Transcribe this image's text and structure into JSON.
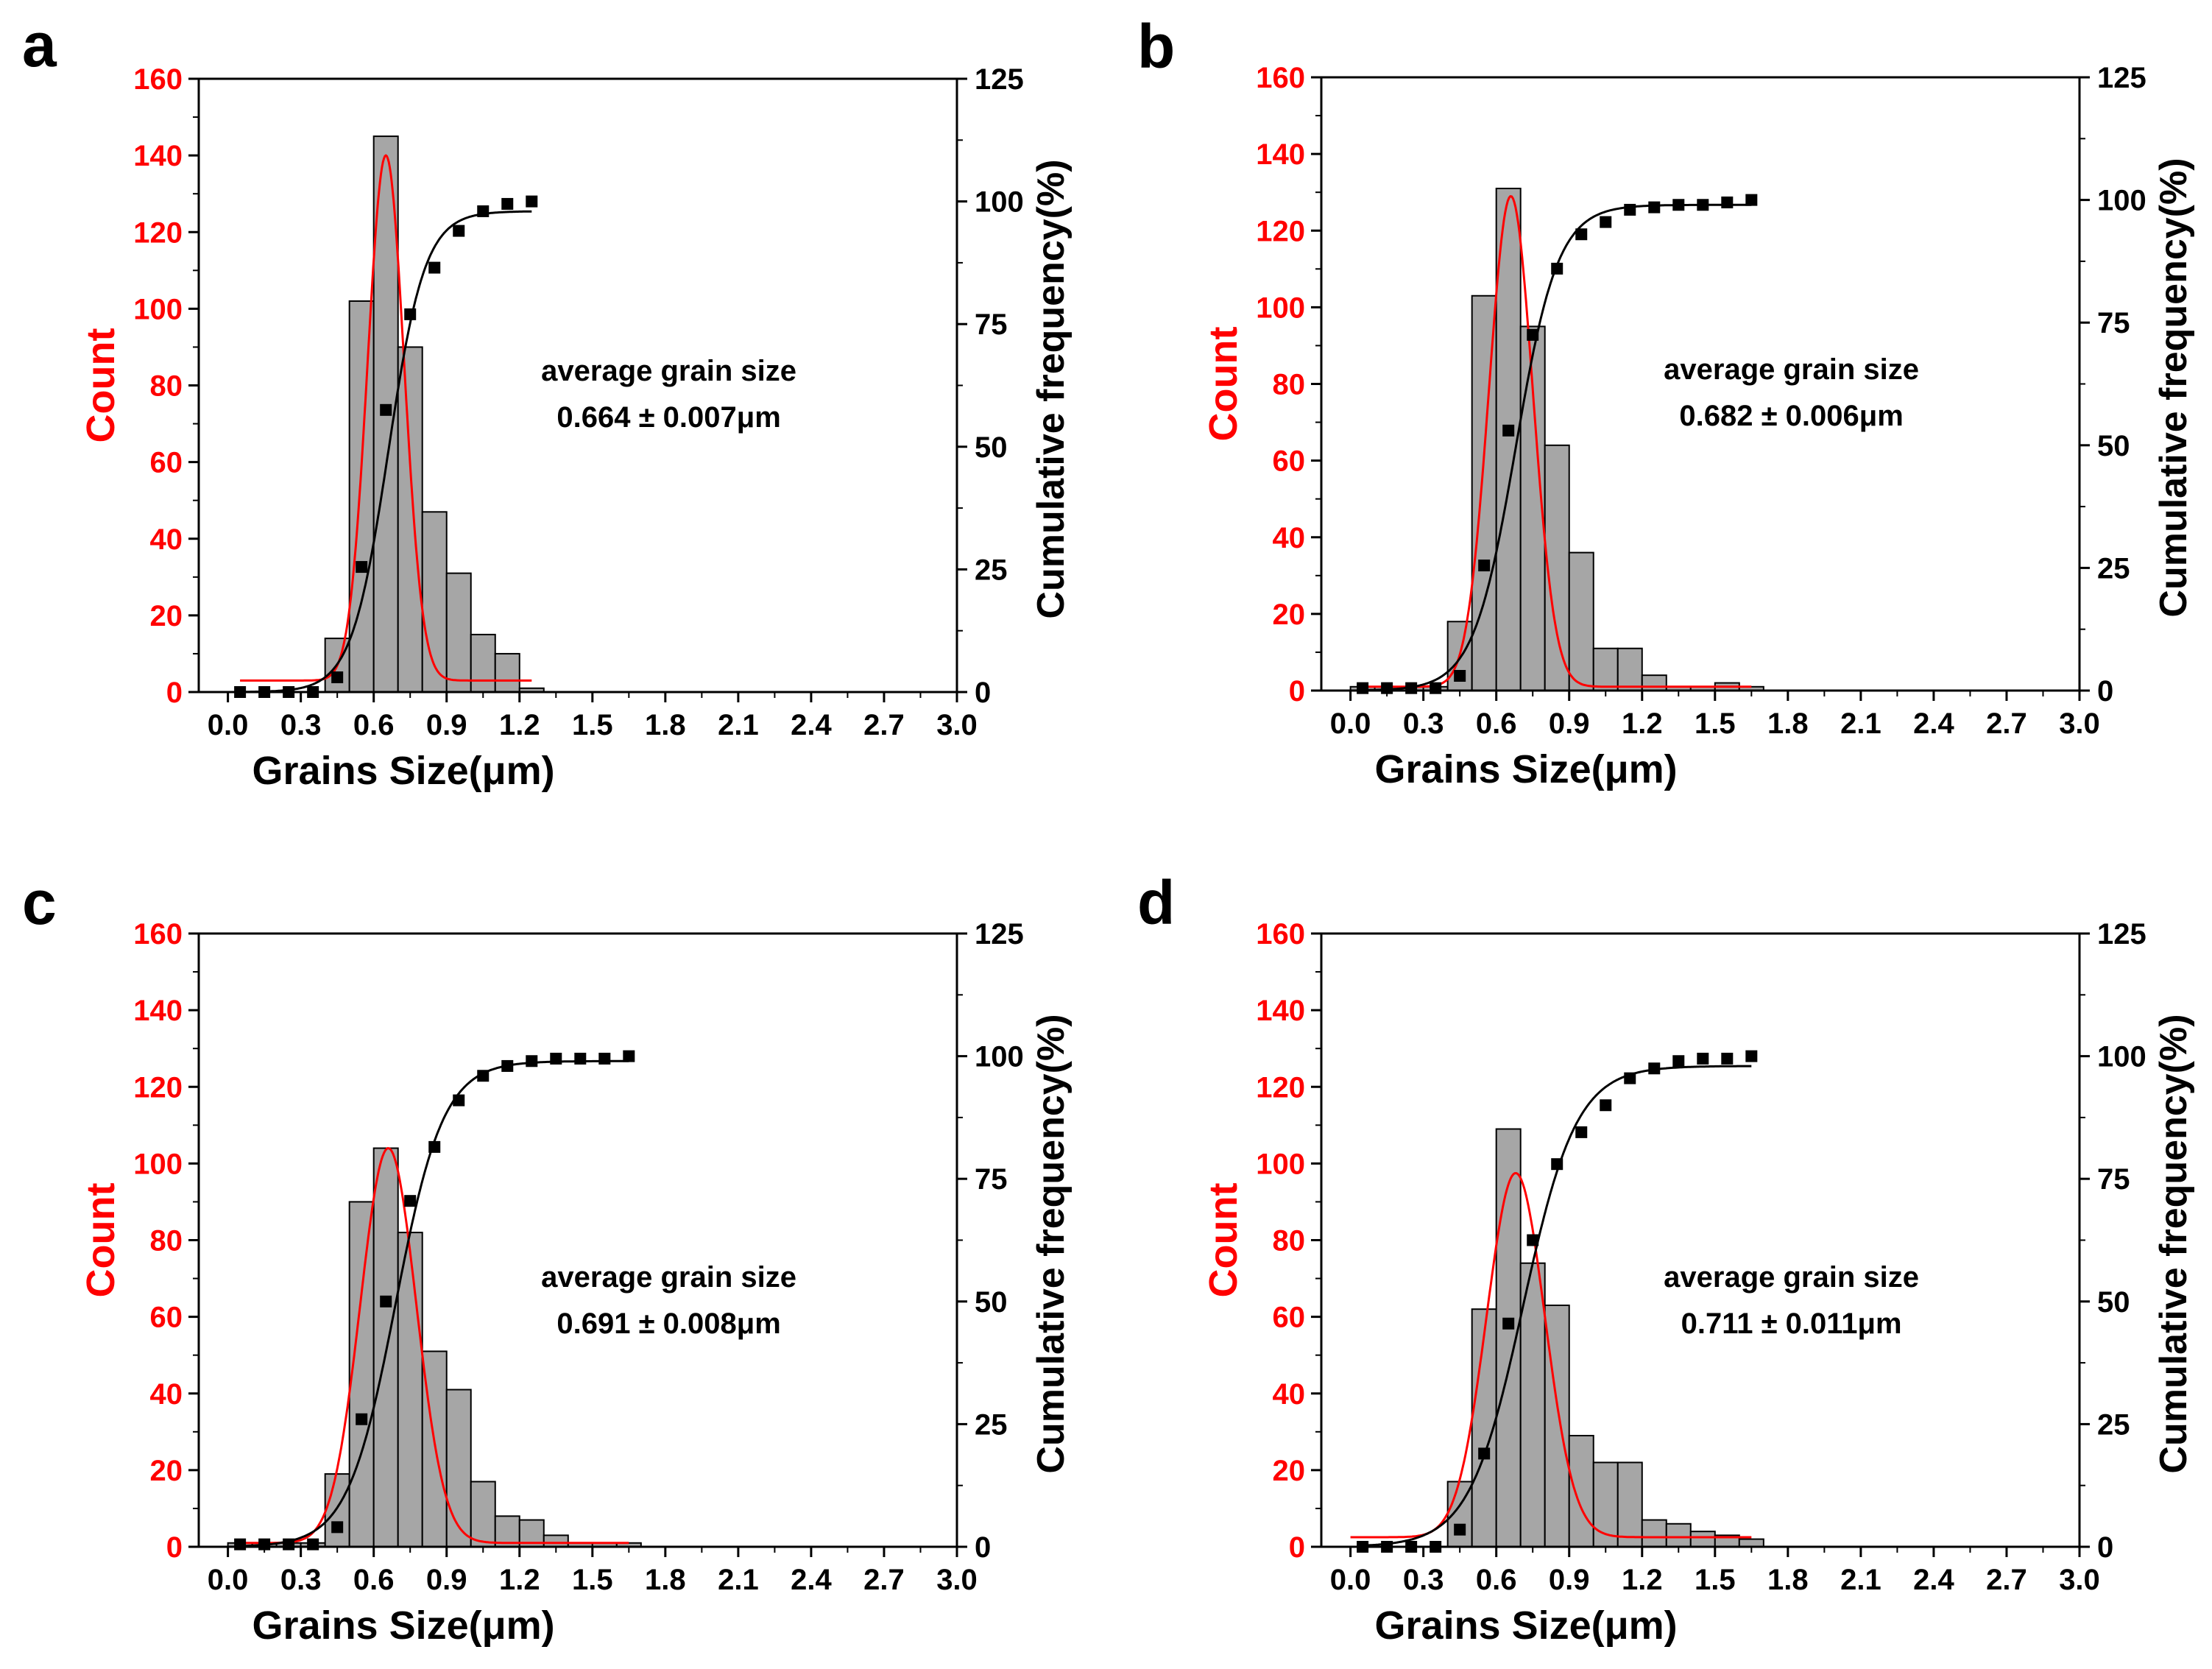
{
  "chart_data": [
    {
      "panel": "a",
      "type": "bar",
      "xlabel": "Grains Size(μm)",
      "ylabel": "Count",
      "ylabel_right": "Cumulative frequency(%)",
      "xlim": [
        -0.12,
        3.0
      ],
      "ylim": [
        0,
        160
      ],
      "ylim_right": [
        0,
        125
      ],
      "xticks": [
        "0.0",
        "0.3",
        "0.6",
        "0.9",
        "1.2",
        "1.5",
        "1.8",
        "2.1",
        "2.4",
        "2.7",
        "3.0"
      ],
      "yticks": [
        "0",
        "20",
        "40",
        "60",
        "80",
        "100",
        "120",
        "140",
        "160"
      ],
      "yticks_right": [
        "0",
        "25",
        "50",
        "75",
        "100",
        "125"
      ],
      "annotation_line1": "average grain size",
      "annotation_line2": "0.664 ± 0.007μm",
      "bar_width": 0.1,
      "bars": {
        "x": [
          0.05,
          0.15,
          0.25,
          0.35,
          0.45,
          0.55,
          0.65,
          0.75,
          0.85,
          0.95,
          1.05,
          1.15,
          1.25
        ],
        "values": [
          0,
          0,
          0,
          0,
          14,
          102,
          145,
          90,
          47,
          31,
          15,
          10,
          1
        ]
      },
      "gauss_fit": {
        "mu": 0.65,
        "sigma": 0.075,
        "amp": 137,
        "base": 3,
        "xrange": [
          0.05,
          1.25
        ]
      },
      "cumulative_points": {
        "x": [
          0.05,
          0.15,
          0.25,
          0.35,
          0.45,
          0.55,
          0.65,
          0.75,
          0.85,
          0.95,
          1.05,
          1.15,
          1.25
        ],
        "values": [
          0,
          0,
          0,
          0,
          3,
          25.5,
          57.5,
          77,
          86.5,
          94,
          98,
          99.5,
          100
        ]
      },
      "cumulative_fit": {
        "mu": 0.66,
        "sigma": 0.13,
        "max": 98,
        "xrange": [
          0.05,
          1.25
        ]
      }
    },
    {
      "panel": "b",
      "type": "bar",
      "xlabel": "Grains Size(μm)",
      "ylabel": "Count",
      "ylabel_right": "Cumulative frequency(%)",
      "xlim": [
        -0.12,
        3.0
      ],
      "ylim": [
        0,
        160
      ],
      "ylim_right": [
        0,
        125
      ],
      "xticks": [
        "0.0",
        "0.3",
        "0.6",
        "0.9",
        "1.2",
        "1.5",
        "1.8",
        "2.1",
        "2.4",
        "2.7",
        "3.0"
      ],
      "yticks": [
        "0",
        "20",
        "40",
        "60",
        "80",
        "100",
        "120",
        "140",
        "160"
      ],
      "yticks_right": [
        "0",
        "25",
        "50",
        "75",
        "100",
        "125"
      ],
      "annotation_line1": "average grain size",
      "annotation_line2": "0.682 ± 0.006μm",
      "bar_width": 0.1,
      "bars": {
        "x": [
          0.05,
          0.15,
          0.25,
          0.35,
          0.45,
          0.55,
          0.65,
          0.75,
          0.85,
          0.95,
          1.05,
          1.15,
          1.25,
          1.35,
          1.45,
          1.55,
          1.65
        ],
        "values": [
          1,
          1,
          1,
          1,
          18,
          103,
          131,
          95,
          64,
          36,
          11,
          11,
          4,
          1,
          1,
          2,
          1
        ]
      },
      "gauss_fit": {
        "mu": 0.66,
        "sigma": 0.09,
        "amp": 128,
        "base": 1,
        "xrange": [
          0.05,
          1.65
        ]
      },
      "cumulative_points": {
        "x": [
          0.05,
          0.15,
          0.25,
          0.35,
          0.45,
          0.55,
          0.65,
          0.75,
          0.85,
          0.95,
          1.05,
          1.15,
          1.25,
          1.35,
          1.45,
          1.55,
          1.65
        ],
        "values": [
          0.5,
          0.5,
          0.5,
          0.5,
          3,
          25.5,
          53,
          72.5,
          86,
          93,
          95.5,
          98,
          98.5,
          99,
          99,
          99.5,
          100
        ]
      },
      "cumulative_fit": {
        "mu": 0.68,
        "sigma": 0.15,
        "max": 99,
        "xrange": [
          0.05,
          1.65
        ]
      }
    },
    {
      "panel": "c",
      "type": "bar",
      "xlabel": "Grains Size(μm)",
      "ylabel": "Count",
      "ylabel_right": "Cumulative frequency(%)",
      "xlim": [
        -0.12,
        3.0
      ],
      "ylim": [
        0,
        160
      ],
      "ylim_right": [
        0,
        125
      ],
      "xticks": [
        "0.0",
        "0.3",
        "0.6",
        "0.9",
        "1.2",
        "1.5",
        "1.8",
        "2.1",
        "2.4",
        "2.7",
        "3.0"
      ],
      "yticks": [
        "0",
        "20",
        "40",
        "60",
        "80",
        "100",
        "120",
        "140",
        "160"
      ],
      "yticks_right": [
        "0",
        "25",
        "50",
        "75",
        "100",
        "125"
      ],
      "annotation_line1": "average grain size",
      "annotation_line2": "0.691 ± 0.008μm",
      "bar_width": 0.1,
      "bars": {
        "x": [
          0.05,
          0.15,
          0.25,
          0.35,
          0.45,
          0.55,
          0.65,
          0.75,
          0.85,
          0.95,
          1.05,
          1.15,
          1.25,
          1.35,
          1.45,
          1.55,
          1.65
        ],
        "values": [
          1,
          1,
          1,
          1,
          19,
          90,
          104,
          82,
          51,
          41,
          17,
          8,
          7,
          3,
          1,
          1,
          1
        ]
      },
      "gauss_fit": {
        "mu": 0.66,
        "sigma": 0.115,
        "amp": 103,
        "base": 1,
        "xrange": [
          0.05,
          1.65
        ]
      },
      "cumulative_points": {
        "x": [
          0.05,
          0.15,
          0.25,
          0.35,
          0.45,
          0.55,
          0.65,
          0.75,
          0.85,
          0.95,
          1.05,
          1.15,
          1.25,
          1.35,
          1.45,
          1.55,
          1.65
        ],
        "values": [
          0.5,
          0.5,
          0.5,
          0.5,
          4,
          26,
          50,
          70.5,
          81.5,
          91,
          96,
          98,
          99,
          99.5,
          99.5,
          99.5,
          100
        ]
      },
      "cumulative_fit": {
        "mu": 0.69,
        "sigma": 0.17,
        "max": 99,
        "xrange": [
          0.05,
          1.65
        ]
      }
    },
    {
      "panel": "d",
      "type": "bar",
      "xlabel": "Grains Size(μm)",
      "ylabel": "Count",
      "ylabel_right": "Cumulative frequency(%)",
      "xlim": [
        -0.12,
        3.0
      ],
      "ylim": [
        0,
        160
      ],
      "ylim_right": [
        0,
        125
      ],
      "xticks": [
        "0.0",
        "0.3",
        "0.6",
        "0.9",
        "1.2",
        "1.5",
        "1.8",
        "2.1",
        "2.4",
        "2.7",
        "3.0"
      ],
      "yticks": [
        "0",
        "20",
        "40",
        "60",
        "80",
        "100",
        "120",
        "140",
        "160"
      ],
      "yticks_right": [
        "0",
        "25",
        "50",
        "75",
        "100",
        "125"
      ],
      "annotation_line1": "average grain size",
      "annotation_line2": "0.711 ± 0.011μm",
      "bar_width": 0.1,
      "bars": {
        "x": [
          0.05,
          0.15,
          0.25,
          0.35,
          0.45,
          0.55,
          0.65,
          0.75,
          0.85,
          0.95,
          1.05,
          1.15,
          1.25,
          1.35,
          1.45,
          1.55,
          1.65
        ],
        "values": [
          0,
          0,
          0,
          0,
          17,
          62,
          109,
          74,
          63,
          29,
          22,
          22,
          7,
          6,
          4,
          3,
          2
        ]
      },
      "gauss_fit": {
        "mu": 0.68,
        "sigma": 0.12,
        "amp": 95,
        "base": 2.5,
        "xrange": [
          0.0,
          1.65
        ]
      },
      "cumulative_points": {
        "x": [
          0.05,
          0.15,
          0.25,
          0.35,
          0.45,
          0.55,
          0.65,
          0.75,
          0.85,
          0.95,
          1.05,
          1.15,
          1.25,
          1.35,
          1.45,
          1.55,
          1.65
        ],
        "values": [
          0,
          0,
          0,
          0,
          3.5,
          19,
          45.5,
          62.5,
          78,
          84.5,
          90,
          95.5,
          97.5,
          99,
          99.5,
          99.5,
          100
        ]
      },
      "cumulative_fit": {
        "mu": 0.71,
        "sigma": 0.19,
        "max": 98,
        "xrange": [
          0.05,
          1.65
        ]
      }
    }
  ],
  "colors": {
    "left_axis": "#ff0000",
    "bar_fill": "#a6a6a6",
    "bar_stroke": "#000000",
    "gauss_line": "#ff0000",
    "cumulative": "#000000"
  }
}
